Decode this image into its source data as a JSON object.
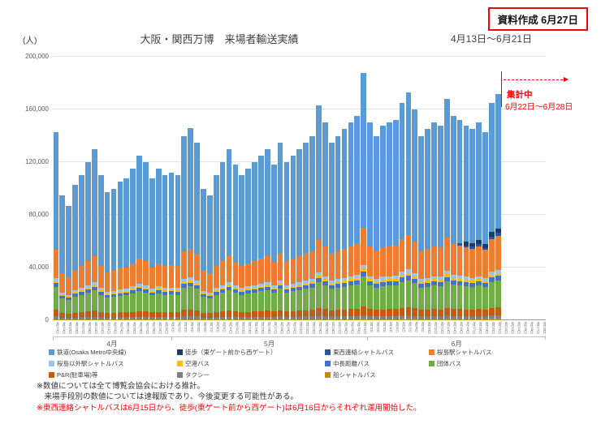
{
  "header": {
    "stamp": "資料作成 6月27日",
    "title": "大阪・関西万博　来場者輸送実績",
    "date_range": "4月13日〜6月21日",
    "y_unit": "(人)"
  },
  "notes": {
    "line1": "※数値については全て博覧会協会における推計。",
    "line2": "　来場手段別の数値については速報版であり、今後変更する可能性がある。",
    "line3": "※東西連絡シャトルバスは6月15日から、徒歩(東ゲート前から西ゲート)は6月16日からそれぞれ運用開始した。"
  },
  "chart_data": {
    "type": "bar",
    "subtype": "stacked",
    "title": "大阪・関西万博　来場者輸送実績",
    "subtitle": "4月13日〜6月21日",
    "xlabel": "",
    "ylabel": "(人)",
    "ylim": [
      0,
      200000
    ],
    "yticks": [
      0,
      40000,
      80000,
      120000,
      160000,
      200000
    ],
    "ytick_labels": [
      "0",
      "40,000",
      "80,000",
      "120,000",
      "160,000",
      "200,000"
    ],
    "grid": "horizontal",
    "legend_position": "bottom",
    "annotation": {
      "line1": "集計中",
      "line2": "6月22日〜6月28日",
      "color": "#ff0000"
    },
    "month_groups": [
      {
        "label": "4月",
        "count": 18
      },
      {
        "label": "5月",
        "count": 31
      },
      {
        "label": "6月",
        "count": 28
      }
    ],
    "dates": [
      "4月13日",
      "4月14日",
      "4月15日",
      "4月16日",
      "4月17日",
      "4月18日",
      "4月19日",
      "4月20日",
      "4月21日",
      "4月22日",
      "4月23日",
      "4月24日",
      "4月25日",
      "4月26日",
      "4月27日",
      "4月28日",
      "4月29日",
      "4月30日",
      "5月1日",
      "5月2日",
      "5月3日",
      "5月4日",
      "5月5日",
      "5月6日",
      "5月7日",
      "5月8日",
      "5月9日",
      "5月10日",
      "5月11日",
      "5月12日",
      "5月13日",
      "5月14日",
      "5月15日",
      "5月16日",
      "5月17日",
      "5月18日",
      "5月19日",
      "5月20日",
      "5月21日",
      "5月22日",
      "5月23日",
      "5月24日",
      "5月25日",
      "5月26日",
      "5月27日",
      "5月28日",
      "5月29日",
      "5月30日",
      "5月31日",
      "6月1日",
      "6月2日",
      "6月3日",
      "6月4日",
      "6月5日",
      "6月6日",
      "6月7日",
      "6月8日",
      "6月9日",
      "6月10日",
      "6月11日",
      "6月12日",
      "6月13日",
      "6月14日",
      "6月15日",
      "6月16日",
      "6月17日",
      "6月18日",
      "6月19日",
      "6月20日",
      "6月21日",
      "6月22日",
      "6月23日",
      "6月24日",
      "6月25日",
      "6月26日",
      "6月27日",
      "6月28日"
    ],
    "totals": [
      143000,
      95000,
      87000,
      103000,
      110000,
      120000,
      130000,
      110000,
      97000,
      100000,
      105000,
      108000,
      115000,
      125000,
      120000,
      108000,
      115000,
      110000,
      112000,
      110000,
      140000,
      146000,
      135000,
      100000,
      95000,
      110000,
      120000,
      130000,
      118000,
      110000,
      115000,
      120000,
      125000,
      130000,
      118000,
      135000,
      120000,
      125000,
      130000,
      135000,
      140000,
      163000,
      150000,
      135000,
      140000,
      145000,
      150000,
      155000,
      188000,
      150000,
      140000,
      148000,
      150000,
      152000,
      165000,
      173000,
      160000,
      140000,
      145000,
      150000,
      148000,
      168000,
      155000,
      152000,
      148000,
      145000,
      150000,
      143000,
      165000,
      172000
    ],
    "series": [
      {
        "name": "鉄道(Osaka Metro中央線)",
        "color": "#5B9BD5",
        "remainder": true,
        "fraction": 0.6
      },
      {
        "name": "徒歩（東ゲート前から西ゲート）",
        "color": "#1F3864",
        "fraction": 0.02,
        "start_index": 64
      },
      {
        "name": "東西連絡シャトルバス",
        "color": "#2F5597",
        "fraction": 0.012,
        "start_index": 63
      },
      {
        "name": "桜島駅シャトルバス",
        "color": "#ED7D31",
        "fraction": 0.15
      },
      {
        "name": "桜島以外駅シャトルバス",
        "color": "#9DC3E6",
        "fraction": 0.015
      },
      {
        "name": "空港バス",
        "color": "#FFC000",
        "fraction": 0.012
      },
      {
        "name": "中長距離バス",
        "color": "#4472C4",
        "fraction": 0.02
      },
      {
        "name": "団体バス",
        "color": "#70AD47",
        "fraction": 0.12
      },
      {
        "name": "P&R(駐車場)等",
        "color": "#C55A11",
        "fraction": 0.035
      },
      {
        "name": "タクシー",
        "color": "#7F7F7F",
        "fraction": 0.015
      },
      {
        "name": "船シャトルバス",
        "color": "#BF9000",
        "fraction": 0.006
      }
    ]
  }
}
